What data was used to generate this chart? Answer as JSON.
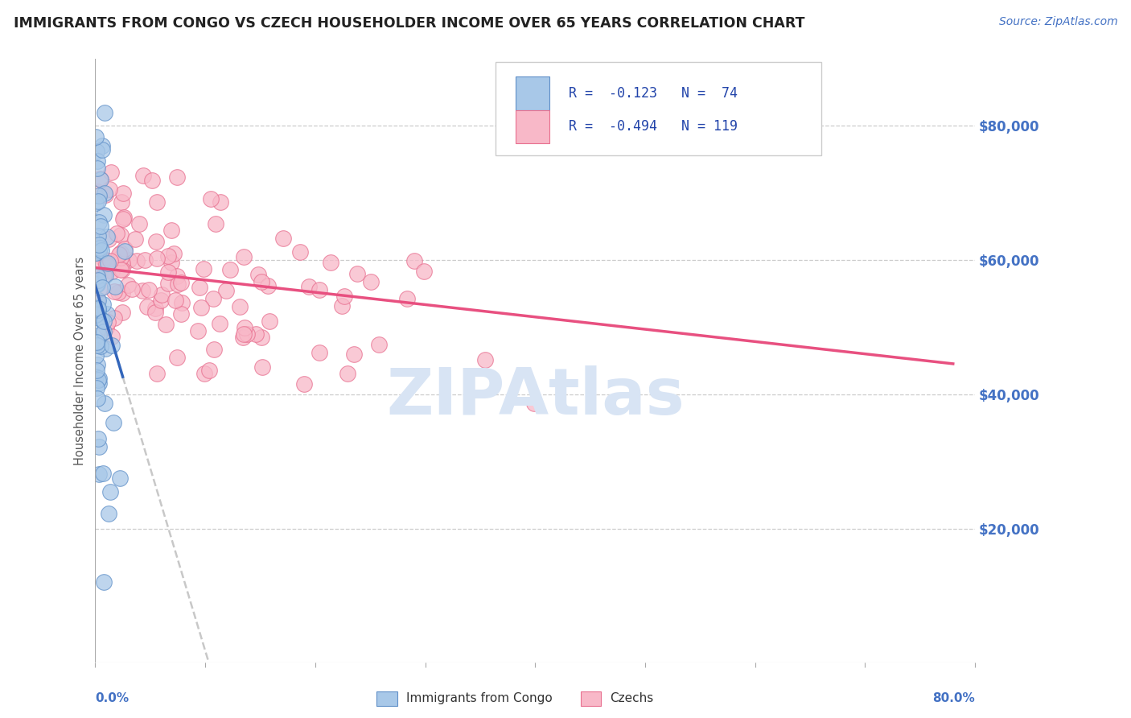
{
  "title": "IMMIGRANTS FROM CONGO VS CZECH HOUSEHOLDER INCOME OVER 65 YEARS CORRELATION CHART",
  "source": "Source: ZipAtlas.com",
  "ylabel": "Householder Income Over 65 years",
  "legend_label1": "Immigrants from Congo",
  "legend_label2": "Czechs",
  "ytick_labels": [
    "$20,000",
    "$40,000",
    "$60,000",
    "$80,000"
  ],
  "ytick_values": [
    20000,
    40000,
    60000,
    80000
  ],
  "color_congo_fill": "#a8c8e8",
  "color_czech_fill": "#f8b8c8",
  "color_congo_edge": "#6090c8",
  "color_czech_edge": "#e87090",
  "color_congo_line": "#3366bb",
  "color_czech_line": "#e85080",
  "color_dashed": "#c8c8c8",
  "watermark": "ZIPAtlas",
  "watermark_color": "#d8e4f4",
  "xlim": [
    0.0,
    0.8
  ],
  "ylim": [
    0,
    90000
  ],
  "figsize": [
    14.06,
    8.92
  ],
  "dpi": 100,
  "title_fontsize": 12.5,
  "source_fontsize": 10,
  "ytick_fontsize": 12,
  "ylabel_fontsize": 10.5,
  "legend_fontsize": 12
}
